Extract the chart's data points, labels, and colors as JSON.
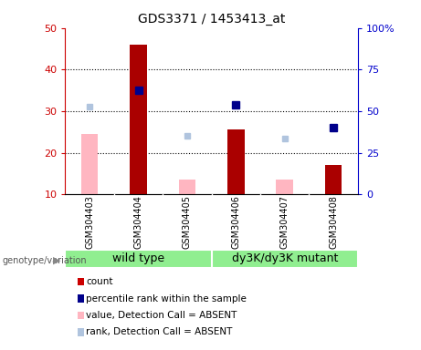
{
  "title": "GDS3371 / 1453413_at",
  "samples": [
    "GSM304403",
    "GSM304404",
    "GSM304405",
    "GSM304406",
    "GSM304407",
    "GSM304408"
  ],
  "count_values": [
    null,
    46,
    null,
    25.5,
    null,
    17
  ],
  "absent_values": [
    24.5,
    null,
    13.5,
    null,
    13.5,
    null
  ],
  "rank_present": [
    null,
    35,
    null,
    31.5,
    null,
    26
  ],
  "rank_absent": [
    31,
    null,
    24,
    null,
    23.5,
    null
  ],
  "ylim_left": [
    10,
    50
  ],
  "ylim_right": [
    0,
    100
  ],
  "yticks_left": [
    10,
    20,
    30,
    40,
    50
  ],
  "ytick_labels_left": [
    "10",
    "20",
    "30",
    "40",
    "50"
  ],
  "yticks_right": [
    0,
    25,
    50,
    75,
    100
  ],
  "ytick_labels_right": [
    "0",
    "25",
    "50",
    "75",
    "100%"
  ],
  "left_axis_color": "#cc0000",
  "right_axis_color": "#0000cc",
  "bar_color_present": "#aa0000",
  "bar_color_absent": "#ffb6c1",
  "marker_color_present": "#00008b",
  "marker_color_absent": "#b0c4de",
  "group_color": "#90ee90",
  "sample_bg": "#c8c8c8",
  "legend_entries": [
    "count",
    "percentile rank within the sample",
    "value, Detection Call = ABSENT",
    "rank, Detection Call = ABSENT"
  ],
  "legend_colors": [
    "#cc0000",
    "#00008b",
    "#ffb6c1",
    "#b0c4de"
  ],
  "bar_width": 0.35,
  "marker_size": 6
}
